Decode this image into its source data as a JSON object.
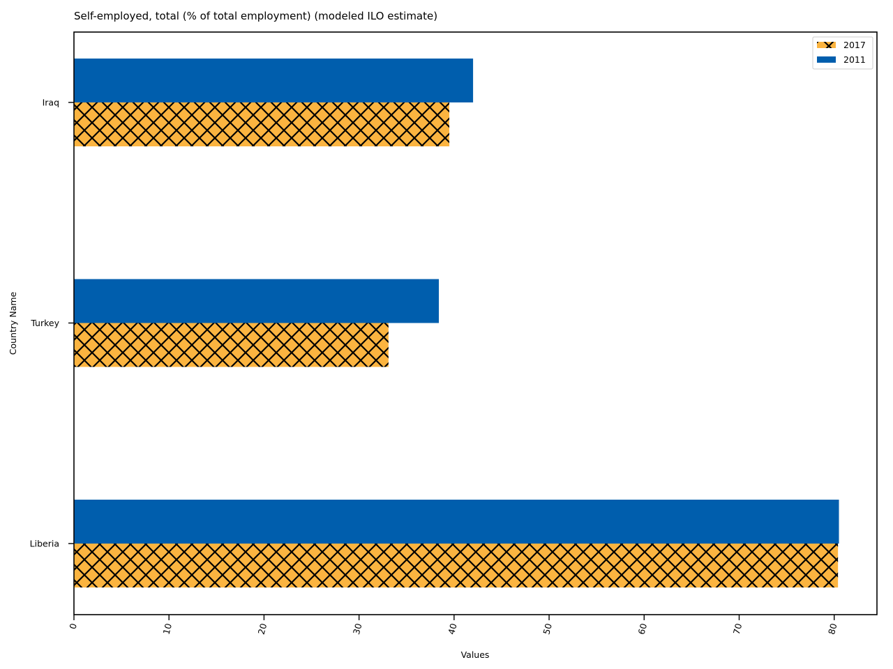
{
  "chart_data": {
    "type": "bar",
    "orientation": "horizontal",
    "title": "Self-employed, total (% of total employment) (modeled ILO estimate)",
    "xlabel": "Values",
    "ylabel": "Country Name",
    "categories": [
      "Liberia",
      "Turkey",
      "Iraq"
    ],
    "series": [
      {
        "name": "2017",
        "values": [
          80.4,
          33.1,
          39.5
        ],
        "color": "#fbb440",
        "hatch": "cross"
      },
      {
        "name": "2011",
        "values": [
          80.5,
          38.4,
          42.0
        ],
        "color": "#005ead",
        "hatch": "none"
      }
    ],
    "xlim": [
      0,
      84.5
    ],
    "xticks": [
      0,
      10,
      20,
      30,
      40,
      50,
      60,
      70,
      80
    ],
    "legend_position": "top-right",
    "grid": false
  }
}
